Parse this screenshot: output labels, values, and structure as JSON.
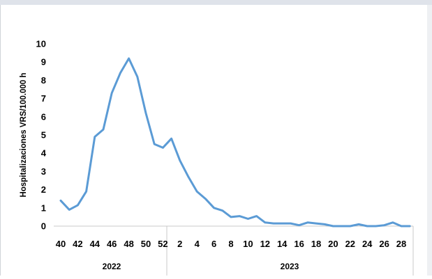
{
  "chart_data": {
    "type": "line",
    "ylabel": "Hospitalizaciones VRS/100.000 h",
    "ylim": [
      0,
      10
    ],
    "yticks": [
      "0",
      "1",
      "2",
      "3",
      "4",
      "5",
      "6",
      "7",
      "8",
      "9",
      "10"
    ],
    "years": [
      "2022",
      "2023"
    ],
    "xtick_labels": [
      "40",
      "42",
      "44",
      "46",
      "48",
      "50",
      "52",
      "2",
      "4",
      "6",
      "8",
      "10",
      "12",
      "14",
      "16",
      "18",
      "20",
      "22",
      "24",
      "26",
      "28"
    ],
    "weeks": [
      40,
      41,
      42,
      43,
      44,
      45,
      46,
      47,
      48,
      49,
      50,
      51,
      52,
      1,
      2,
      3,
      4,
      5,
      6,
      7,
      8,
      9,
      10,
      11,
      12,
      13,
      14,
      15,
      16,
      17,
      18,
      19,
      20,
      21,
      22,
      23,
      24,
      25,
      26,
      27,
      28,
      29
    ],
    "series": [
      {
        "values": [
          1.4,
          0.9,
          1.15,
          1.9,
          4.9,
          5.3,
          7.3,
          8.4,
          9.2,
          8.2,
          6.2,
          4.5,
          4.3,
          4.8,
          3.6,
          2.7,
          1.9,
          1.5,
          1.0,
          0.85,
          0.5,
          0.55,
          0.4,
          0.55,
          0.2,
          0.15,
          0.15,
          0.15,
          0.05,
          0.2,
          0.15,
          0.1,
          0.0,
          0.0,
          0.0,
          0.1,
          0.0,
          0.0,
          0.05,
          0.2,
          0.0,
          0.0
        ]
      }
    ],
    "line_color": "#5b9bd5",
    "grid": false,
    "legend": "none"
  }
}
